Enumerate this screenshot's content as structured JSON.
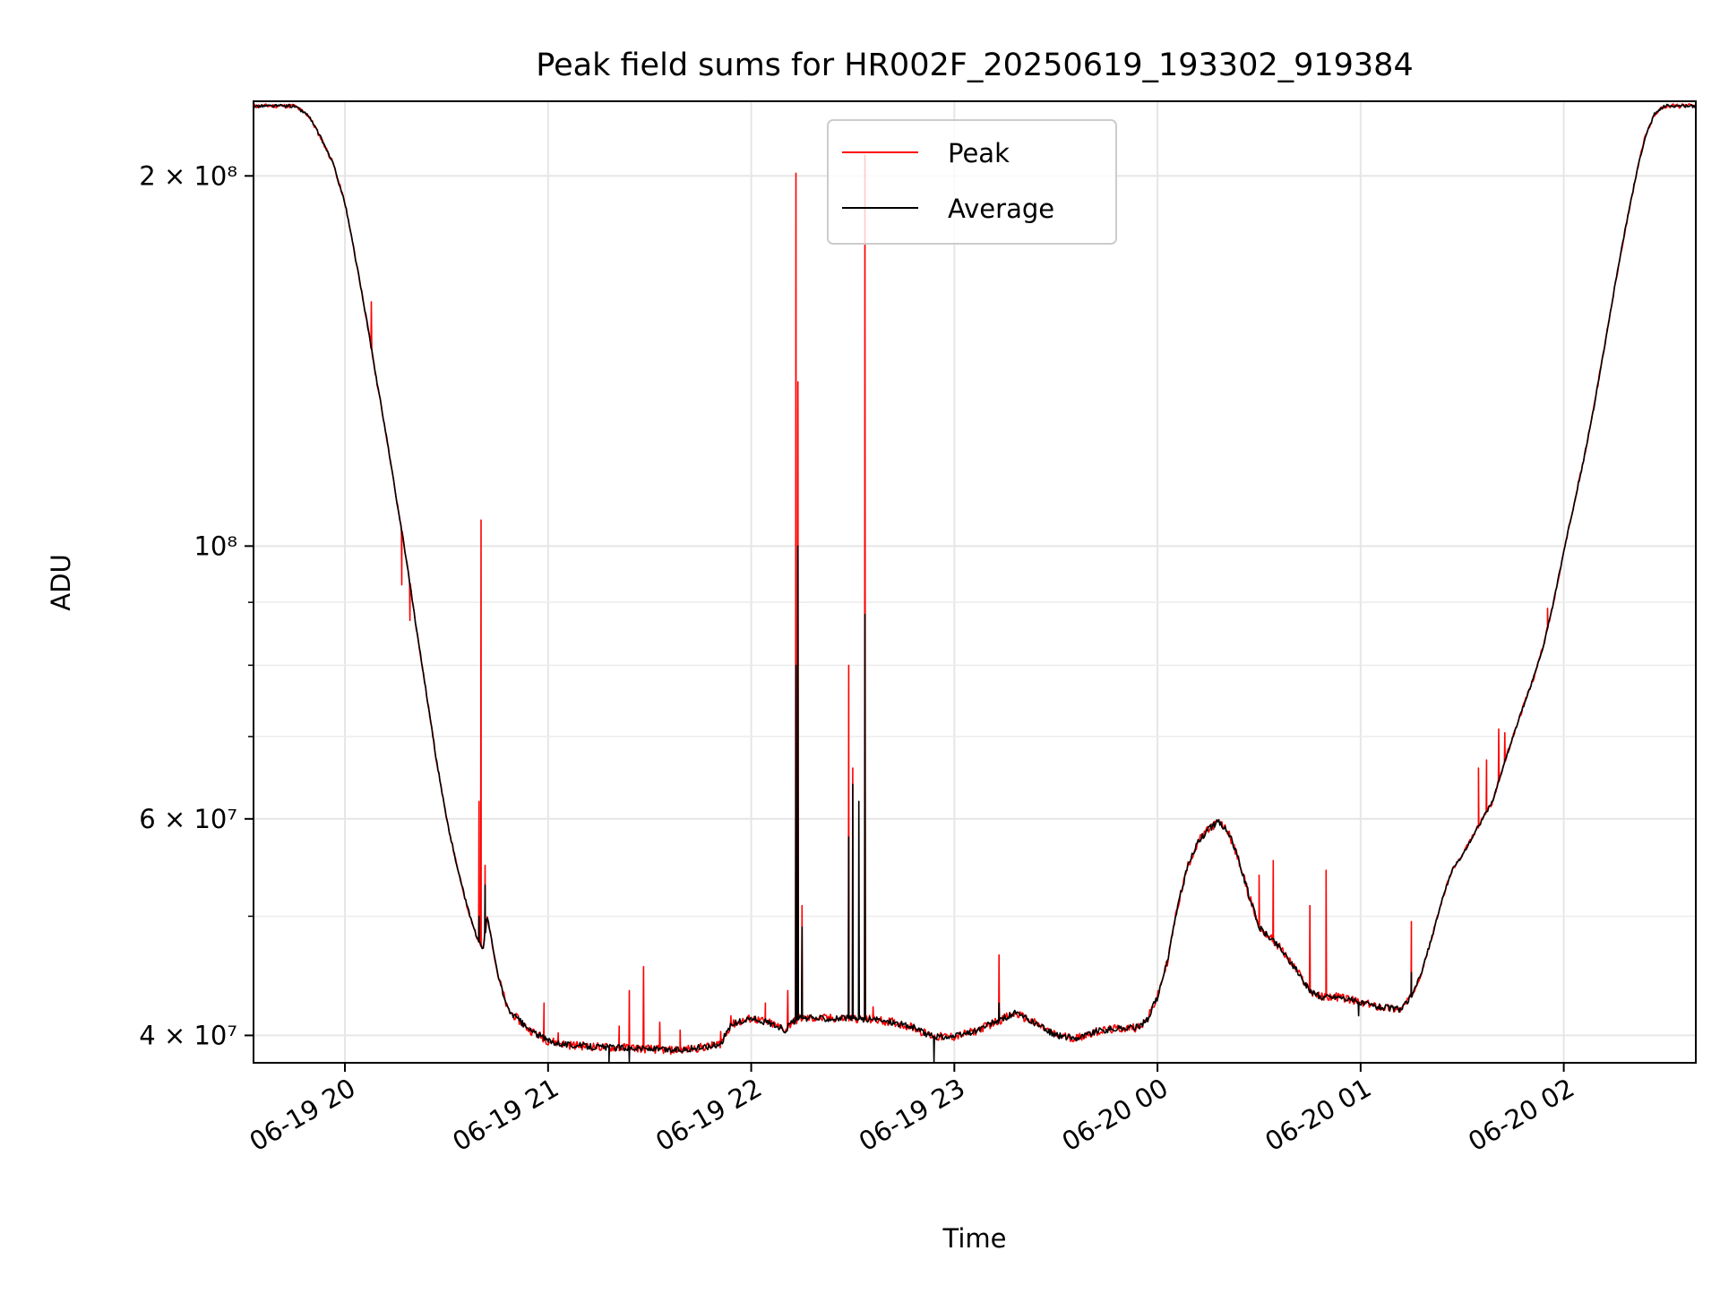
{
  "chart_data": {
    "type": "line",
    "title": "Peak field sums for HR002F_20250619_193302_919384",
    "xlabel": "Time",
    "ylabel": "ADU",
    "yscale": "log",
    "ylim": [
      38000000,
      230000000
    ],
    "xlim_hours": [
      -0.45,
      6.65
    ],
    "x_ticks": [
      {
        "label": "06-19 20",
        "value": 0
      },
      {
        "label": "06-19 21",
        "value": 1
      },
      {
        "label": "06-19 22",
        "value": 2
      },
      {
        "label": "06-19 23",
        "value": 3
      },
      {
        "label": "06-20 00",
        "value": 4
      },
      {
        "label": "06-20 01",
        "value": 5
      },
      {
        "label": "06-20 02",
        "value": 6
      }
    ],
    "y_ticks": [
      {
        "label": "4 × 10⁷",
        "value": 40000000
      },
      {
        "label": "6 × 10⁷",
        "value": 60000000
      },
      {
        "label": "10⁸",
        "value": 100000000
      },
      {
        "label": "2 × 10⁸",
        "value": 200000000
      }
    ],
    "y_minor_ticks": [
      50000000,
      70000000,
      80000000,
      90000000
    ],
    "grid": true,
    "legend_position": "top-center",
    "series": [
      {
        "name": "Average",
        "color": "#000000",
        "points": [
          [
            -0.45,
            228000000
          ],
          [
            -0.25,
            228000000
          ],
          [
            -0.18,
            224000000
          ],
          [
            -0.12,
            215000000
          ],
          [
            -0.06,
            205000000
          ],
          [
            0.0,
            190000000
          ],
          [
            0.05,
            172000000
          ],
          [
            0.1,
            155000000
          ],
          [
            0.15,
            138000000
          ],
          [
            0.2,
            124000000
          ],
          [
            0.25,
            110000000
          ],
          [
            0.3,
            98000000
          ],
          [
            0.35,
            86000000
          ],
          [
            0.4,
            76000000
          ],
          [
            0.45,
            67000000
          ],
          [
            0.5,
            60000000
          ],
          [
            0.55,
            55000000
          ],
          [
            0.6,
            51000000
          ],
          [
            0.65,
            48000000
          ],
          [
            0.68,
            47000000
          ],
          [
            0.7,
            50000000
          ],
          [
            0.72,
            48000000
          ],
          [
            0.75,
            45000000
          ],
          [
            0.8,
            42000000
          ],
          [
            0.9,
            40500000
          ],
          [
            1.0,
            39600000
          ],
          [
            1.1,
            39300000
          ],
          [
            1.2,
            39200000
          ],
          [
            1.3,
            39100000
          ],
          [
            1.4,
            39100000
          ],
          [
            1.5,
            39000000
          ],
          [
            1.6,
            38900000
          ],
          [
            1.7,
            39000000
          ],
          [
            1.8,
            39200000
          ],
          [
            1.85,
            39400000
          ],
          [
            1.9,
            40800000
          ],
          [
            2.0,
            41300000
          ],
          [
            2.1,
            40900000
          ],
          [
            2.17,
            40400000
          ],
          [
            2.2,
            41000000
          ],
          [
            2.24,
            41300000
          ],
          [
            2.5,
            41300000
          ],
          [
            2.6,
            41200000
          ],
          [
            2.7,
            41000000
          ],
          [
            2.8,
            40600000
          ],
          [
            2.85,
            40200000
          ],
          [
            2.9,
            39900000
          ],
          [
            3.0,
            39900000
          ],
          [
            3.1,
            40300000
          ],
          [
            3.2,
            41000000
          ],
          [
            3.3,
            41700000
          ],
          [
            3.4,
            40900000
          ],
          [
            3.5,
            40000000
          ],
          [
            3.6,
            39800000
          ],
          [
            3.7,
            40300000
          ],
          [
            3.8,
            40500000
          ],
          [
            3.9,
            40600000
          ],
          [
            3.95,
            41200000
          ],
          [
            4.0,
            43000000
          ],
          [
            4.05,
            46000000
          ],
          [
            4.1,
            51000000
          ],
          [
            4.15,
            55000000
          ],
          [
            4.2,
            57500000
          ],
          [
            4.25,
            58800000
          ],
          [
            4.3,
            59700000
          ],
          [
            4.35,
            58500000
          ],
          [
            4.4,
            55500000
          ],
          [
            4.45,
            52000000
          ],
          [
            4.5,
            49000000
          ],
          [
            4.6,
            47200000
          ],
          [
            4.7,
            44800000
          ],
          [
            4.75,
            43500000
          ],
          [
            4.8,
            43000000
          ],
          [
            4.9,
            43000000
          ],
          [
            5.0,
            42500000
          ],
          [
            5.1,
            42200000
          ],
          [
            5.2,
            42000000
          ],
          [
            5.25,
            43000000
          ],
          [
            5.3,
            45000000
          ],
          [
            5.35,
            48000000
          ],
          [
            5.4,
            51500000
          ],
          [
            5.45,
            54500000
          ],
          [
            5.5,
            56000000
          ],
          [
            5.55,
            58000000
          ],
          [
            5.6,
            60000000
          ],
          [
            5.65,
            62000000
          ],
          [
            5.7,
            66000000
          ],
          [
            5.75,
            70000000
          ],
          [
            5.8,
            74000000
          ],
          [
            5.85,
            78000000
          ],
          [
            5.9,
            83000000
          ],
          [
            5.95,
            90000000
          ],
          [
            6.0,
            99000000
          ],
          [
            6.05,
            108000000
          ],
          [
            6.1,
            118000000
          ],
          [
            6.15,
            130000000
          ],
          [
            6.2,
            145000000
          ],
          [
            6.25,
            162000000
          ],
          [
            6.3,
            180000000
          ],
          [
            6.35,
            198000000
          ],
          [
            6.4,
            215000000
          ],
          [
            6.45,
            225000000
          ],
          [
            6.5,
            228000000
          ],
          [
            6.65,
            228000000
          ]
        ],
        "spikes": [
          [
            0.66,
            50000000
          ],
          [
            0.69,
            53000000
          ],
          [
            1.3,
            38000000
          ],
          [
            1.4,
            38000000
          ],
          [
            2.22,
            80000000
          ],
          [
            2.23,
            100000000
          ],
          [
            2.25,
            49000000
          ],
          [
            2.48,
            58000000
          ],
          [
            2.5,
            64000000
          ],
          [
            2.53,
            62000000
          ],
          [
            2.56,
            88000000
          ],
          [
            2.9,
            37000000
          ],
          [
            3.22,
            42500000
          ],
          [
            4.99,
            41500000
          ],
          [
            5.25,
            45000000
          ]
        ]
      },
      {
        "name": "Peak",
        "color": "#ff0000",
        "spikes": [
          [
            0.13,
            158000000
          ],
          [
            0.28,
            93000000
          ],
          [
            0.32,
            87000000
          ],
          [
            0.66,
            62000000
          ],
          [
            0.67,
            105000000
          ],
          [
            0.69,
            55000000
          ],
          [
            0.98,
            42500000
          ],
          [
            1.05,
            40200000
          ],
          [
            1.35,
            40700000
          ],
          [
            1.4,
            43500000
          ],
          [
            1.47,
            45500000
          ],
          [
            1.55,
            41000000
          ],
          [
            1.65,
            40400000
          ],
          [
            1.85,
            40300000
          ],
          [
            1.9,
            41500000
          ],
          [
            2.07,
            42500000
          ],
          [
            2.18,
            43500000
          ],
          [
            2.22,
            201000000
          ],
          [
            2.23,
            136000000
          ],
          [
            2.25,
            51000000
          ],
          [
            2.48,
            80000000
          ],
          [
            2.5,
            66000000
          ],
          [
            2.56,
            208000000
          ],
          [
            2.6,
            42200000
          ],
          [
            3.22,
            46500000
          ],
          [
            4.5,
            54000000
          ],
          [
            4.57,
            55500000
          ],
          [
            4.75,
            51000000
          ],
          [
            4.83,
            54500000
          ],
          [
            5.25,
            49500000
          ],
          [
            5.58,
            66000000
          ],
          [
            5.62,
            67000000
          ],
          [
            5.68,
            71000000
          ],
          [
            5.71,
            70500000
          ],
          [
            5.92,
            89000000
          ]
        ]
      }
    ]
  }
}
